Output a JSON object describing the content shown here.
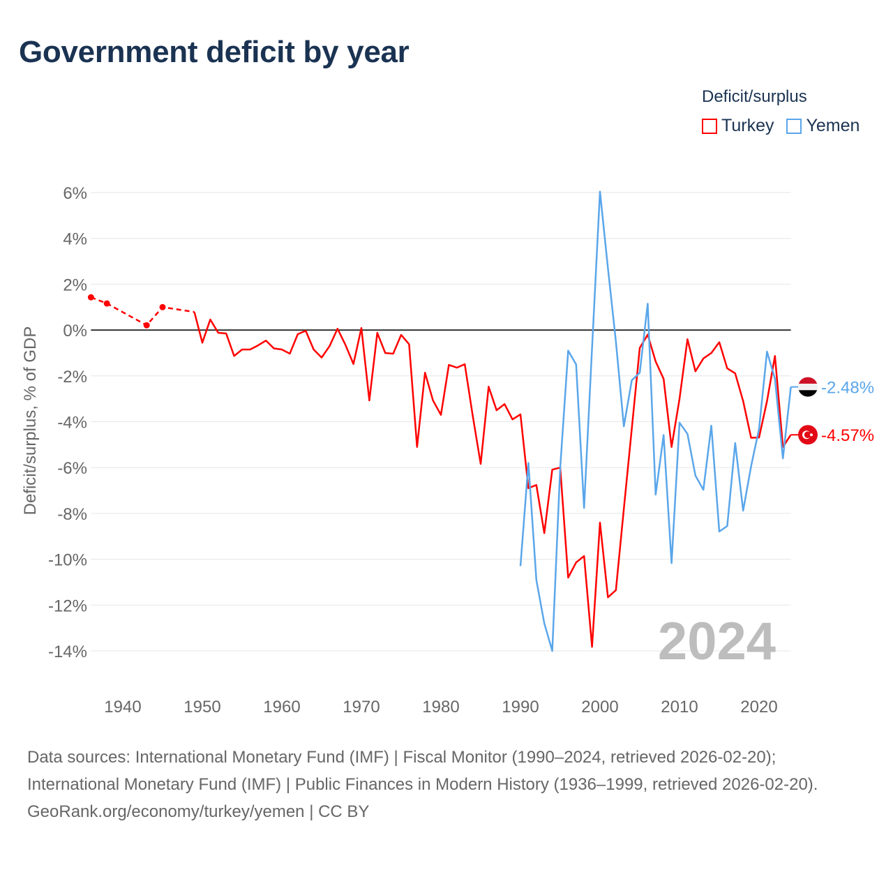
{
  "title": "Government deficit by year",
  "legend": {
    "title": "Deficit/surplus",
    "items": [
      {
        "name": "Turkey",
        "color": "#ff0000"
      },
      {
        "name": "Yemen",
        "color": "#5aa6ea"
      }
    ]
  },
  "year_label": "2024",
  "sources": {
    "line1": "Data sources: International Monetary Fund (IMF) | Fiscal Monitor (1990–2024, retrieved 2026-02-20); International Monetary Fund (IMF) | Public Finances in Modern History (1936–1999, retrieved 2026-02-20).",
    "line2": "GeoRank.org/economy/turkey/yemen | CC BY"
  },
  "chart_data": {
    "type": "line",
    "title": "Government deficit by year",
    "xlabel": "",
    "ylabel": "Deficit/surplus, % of GDP",
    "xlim": [
      1936,
      2024
    ],
    "ylim": [
      -14,
      6
    ],
    "x_ticks": [
      1940,
      1950,
      1960,
      1970,
      1980,
      1990,
      2000,
      2010,
      2020
    ],
    "y_ticks": [
      6,
      4,
      2,
      0,
      -2,
      -4,
      -6,
      -8,
      -10,
      -12,
      -14
    ],
    "y_tick_labels": [
      "6%",
      "4%",
      "2%",
      "0%",
      "-2%",
      "-4%",
      "-6%",
      "-8%",
      "-10%",
      "-12%",
      "-14%"
    ],
    "grid": true,
    "legend_position": "top-right",
    "series": [
      {
        "name": "Turkey",
        "color": "#ff0000",
        "end_label": "-4.57%",
        "sparse_points": [
          [
            1936,
            1.43
          ],
          [
            1938,
            1.16
          ],
          [
            1943,
            0.21
          ],
          [
            1945,
            1.0
          ],
          [
            1949,
            0.79
          ]
        ],
        "points": [
          [
            1949,
            0.79
          ],
          [
            1950,
            -0.55
          ],
          [
            1951,
            0.46
          ],
          [
            1952,
            -0.12
          ],
          [
            1953,
            -0.15
          ],
          [
            1954,
            -1.13
          ],
          [
            1955,
            -0.85
          ],
          [
            1956,
            -0.85
          ],
          [
            1957,
            -0.67
          ],
          [
            1958,
            -0.46
          ],
          [
            1959,
            -0.8
          ],
          [
            1960,
            -0.85
          ],
          [
            1961,
            -1.03
          ],
          [
            1962,
            -0.18
          ],
          [
            1963,
            -0.03
          ],
          [
            1964,
            -0.85
          ],
          [
            1965,
            -1.2
          ],
          [
            1966,
            -0.7
          ],
          [
            1967,
            0.06
          ],
          [
            1968,
            -0.65
          ],
          [
            1969,
            -1.48
          ],
          [
            1970,
            0.09
          ],
          [
            1971,
            -3.07
          ],
          [
            1972,
            -0.12
          ],
          [
            1973,
            -1.0
          ],
          [
            1974,
            -1.03
          ],
          [
            1975,
            -0.21
          ],
          [
            1976,
            -0.62
          ],
          [
            1977,
            -5.1
          ],
          [
            1978,
            -1.86
          ],
          [
            1979,
            -3.07
          ],
          [
            1980,
            -3.7
          ],
          [
            1981,
            -1.52
          ],
          [
            1982,
            -1.64
          ],
          [
            1983,
            -1.49
          ],
          [
            1984,
            -3.74
          ],
          [
            1985,
            -5.84
          ],
          [
            1986,
            -2.47
          ],
          [
            1987,
            -3.5
          ],
          [
            1988,
            -3.23
          ],
          [
            1989,
            -3.9
          ],
          [
            1990,
            -3.68
          ],
          [
            1991,
            -6.9
          ],
          [
            1992,
            -6.76
          ],
          [
            1993,
            -8.86
          ],
          [
            1994,
            -6.09
          ],
          [
            1995,
            -6.0
          ],
          [
            1996,
            -10.8
          ],
          [
            1997,
            -10.14
          ],
          [
            1998,
            -9.86
          ],
          [
            1999,
            -13.82
          ],
          [
            2000,
            -8.4
          ],
          [
            2001,
            -11.66
          ],
          [
            2002,
            -11.35
          ],
          [
            2003,
            -7.8
          ],
          [
            2004,
            -4.3
          ],
          [
            2005,
            -0.78
          ],
          [
            2006,
            -0.2
          ],
          [
            2007,
            -1.37
          ],
          [
            2008,
            -2.13
          ],
          [
            2009,
            -5.1
          ],
          [
            2010,
            -3.0
          ],
          [
            2011,
            -0.4
          ],
          [
            2012,
            -1.8
          ],
          [
            2013,
            -1.24
          ],
          [
            2014,
            -1.0
          ],
          [
            2015,
            -0.53
          ],
          [
            2016,
            -1.67
          ],
          [
            2017,
            -1.89
          ],
          [
            2018,
            -3.1
          ],
          [
            2019,
            -4.7
          ],
          [
            2020,
            -4.69
          ],
          [
            2021,
            -3.1
          ],
          [
            2022,
            -1.13
          ],
          [
            2023,
            -5.1
          ],
          [
            2024,
            -4.57
          ]
        ]
      },
      {
        "name": "Yemen",
        "color": "#5aa6ea",
        "end_label": "-2.48%",
        "sparse_points": [],
        "points": [
          [
            1990,
            -10.3
          ],
          [
            1991,
            -5.8
          ],
          [
            1992,
            -10.9
          ],
          [
            1993,
            -12.8
          ],
          [
            1994,
            -14.0
          ],
          [
            1995,
            -6.0
          ],
          [
            1996,
            -0.9
          ],
          [
            1997,
            -1.5
          ],
          [
            1998,
            -7.76
          ],
          [
            1999,
            -0.8
          ],
          [
            2000,
            6.04
          ],
          [
            2001,
            2.7
          ],
          [
            2002,
            -0.5
          ],
          [
            2003,
            -4.2
          ],
          [
            2004,
            -2.19
          ],
          [
            2005,
            -1.86
          ],
          [
            2006,
            1.15
          ],
          [
            2007,
            -7.18
          ],
          [
            2008,
            -4.58
          ],
          [
            2009,
            -10.17
          ],
          [
            2010,
            -4.04
          ],
          [
            2011,
            -4.53
          ],
          [
            2012,
            -6.35
          ],
          [
            2013,
            -6.97
          ],
          [
            2014,
            -4.17
          ],
          [
            2015,
            -8.79
          ],
          [
            2016,
            -8.55
          ],
          [
            2017,
            -4.93
          ],
          [
            2018,
            -7.88
          ],
          [
            2019,
            -5.94
          ],
          [
            2020,
            -4.31
          ],
          [
            2021,
            -0.94
          ],
          [
            2022,
            -2.13
          ],
          [
            2023,
            -5.6
          ],
          [
            2024,
            -2.48
          ]
        ]
      }
    ]
  }
}
